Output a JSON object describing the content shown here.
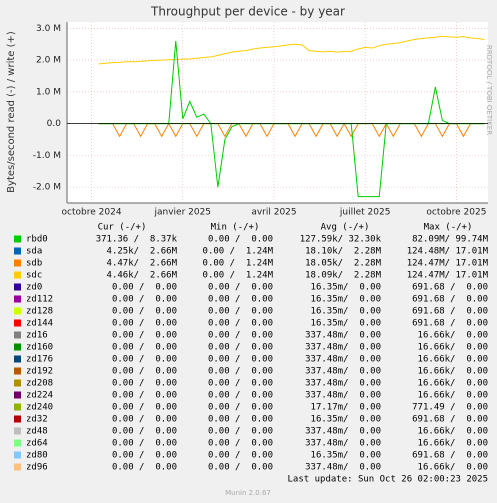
{
  "chart_data": {
    "type": "line",
    "title": "Throughput per device - by year",
    "y_label": "Bytes/second read (-) / write (+)",
    "side_text": "RRDTOOL / TOBI OETIKER",
    "categories": [
      null,
      null,
      null,
      "octobre 2024",
      null,
      null,
      null,
      null,
      null,
      null,
      null,
      null,
      null,
      null,
      null,
      null,
      "janvier 2025",
      null,
      null,
      null,
      null,
      null,
      null,
      null,
      null,
      null,
      null,
      null,
      null,
      "avril 2025",
      null,
      null,
      null,
      null,
      null,
      null,
      null,
      null,
      null,
      null,
      null,
      null,
      "juillet 2025",
      null,
      null,
      null,
      null,
      null,
      null,
      null,
      null,
      null,
      null,
      null,
      null,
      "octobre 2025",
      null,
      null,
      null,
      null
    ],
    "ylim": [
      -2500000,
      3200000
    ],
    "yticks": [
      {
        "value": 3000000,
        "label": "3.0 M"
      },
      {
        "value": 2000000,
        "label": "2.0 M"
      },
      {
        "value": 1000000,
        "label": "1.0 M"
      },
      {
        "value": 0,
        "label": "0.0"
      },
      {
        "value": -1000000,
        "label": "-1.0 M"
      },
      {
        "value": -2000000,
        "label": "-2.0 M"
      }
    ],
    "grid": true,
    "series": [
      {
        "name": "sdc",
        "color": "#ffcc00",
        "values": [
          null,
          null,
          null,
          null,
          1880000,
          1900000,
          1920000,
          1930000,
          1950000,
          1950000,
          1960000,
          1980000,
          1990000,
          2000000,
          2010000,
          2020000,
          2030000,
          2040000,
          2060000,
          2080000,
          2100000,
          2150000,
          2200000,
          2250000,
          2280000,
          2300000,
          2350000,
          2380000,
          2400000,
          2420000,
          2450000,
          2480000,
          2500000,
          2480000,
          2300000,
          2280000,
          2260000,
          2280000,
          2250000,
          2270000,
          2280000,
          2350000,
          2400000,
          2380000,
          2450000,
          2500000,
          2520000,
          2550000,
          2600000,
          2650000,
          2680000,
          2700000,
          2720000,
          2750000,
          2730000,
          2720000,
          2740000,
          2700000,
          2680000,
          2650000
        ]
      },
      {
        "name": "sdb",
        "color": "#ff8000",
        "values": [
          null,
          null,
          null,
          null,
          0,
          0,
          0,
          -400000,
          0,
          0,
          -400000,
          0,
          0,
          -400000,
          0,
          -400000,
          0,
          0,
          -400000,
          0,
          0,
          0,
          -400000,
          0,
          0,
          -400000,
          0,
          0,
          -400000,
          0,
          0,
          0,
          -400000,
          0,
          0,
          -400000,
          0,
          0,
          -400000,
          0,
          -400000,
          0,
          0,
          0,
          -400000,
          0,
          -400000,
          0,
          0,
          0,
          -400000,
          0,
          0,
          -400000,
          0,
          0,
          -400000,
          0,
          0,
          0
        ]
      },
      {
        "name": "rbd0",
        "color": "#00cc00",
        "values": [
          null,
          null,
          null,
          null,
          0,
          0,
          0,
          0,
          0,
          0,
          0,
          0,
          0,
          0,
          0,
          2600000,
          150000,
          700000,
          200000,
          300000,
          0,
          0,
          0,
          0,
          0,
          0,
          0,
          0,
          0,
          0,
          0,
          0,
          0,
          0,
          0,
          0,
          0,
          0,
          0,
          0,
          0,
          0,
          0,
          0,
          0,
          0,
          0,
          0,
          0,
          0,
          0,
          0,
          1150000,
          100000,
          0,
          0,
          0,
          0,
          0,
          0
        ]
      },
      {
        "name": "rbd0",
        "color": "#00cc00",
        "values": [
          null,
          null,
          null,
          null,
          0,
          0,
          0,
          0,
          0,
          0,
          0,
          0,
          0,
          0,
          0,
          0,
          0,
          0,
          0,
          0,
          0,
          -2000000,
          -500000,
          -100000,
          0,
          0,
          0,
          0,
          0,
          0,
          0,
          0,
          0,
          0,
          0,
          0,
          0,
          0,
          0,
          0,
          0,
          -2300000,
          -2300000,
          -2300000,
          -2300000,
          0,
          0,
          0,
          0,
          0,
          0,
          0,
          0,
          0,
          0,
          0,
          0,
          0,
          0,
          0
        ]
      }
    ]
  },
  "legend": {
    "headers": [
      "Cur (-/+)",
      "Min (-/+)",
      "Avg (-/+)",
      "Max (-/+)"
    ],
    "rows": [
      [
        "rbd0",
        "#00cc00",
        "371.36 /  8.37k",
        "0.00 /  0.00",
        "127.59k/ 32.30k",
        "82.09M/ 99.74M"
      ],
      [
        "sda",
        "#0066b3",
        "4.25k/  2.66M",
        "0.00 /  1.24M",
        "18.10k/  2.28M",
        "124.48M/ 17.01M"
      ],
      [
        "sdb",
        "#ff8000",
        "4.47k/  2.66M",
        "0.00 /  1.24M",
        "18.05k/  2.28M",
        "124.47M/ 17.01M"
      ],
      [
        "sdc",
        "#ffcc00",
        "4.46k/  2.66M",
        "0.00 /  1.24M",
        "18.09k/  2.28M",
        "124.47M/ 17.01M"
      ],
      [
        "zd0",
        "#330099",
        "0.00 /  0.00",
        "0.00 /  0.00",
        "16.35m/  0.00",
        "691.68 /  0.00"
      ],
      [
        "zd112",
        "#990099",
        "0.00 /  0.00",
        "0.00 /  0.00",
        "16.35m/  0.00",
        "691.68 /  0.00"
      ],
      [
        "zd128",
        "#ccff00",
        "0.00 /  0.00",
        "0.00 /  0.00",
        "16.35m/  0.00",
        "691.68 /  0.00"
      ],
      [
        "zd144",
        "#ff0000",
        "0.00 /  0.00",
        "0.00 /  0.00",
        "16.35m/  0.00",
        "691.68 /  0.00"
      ],
      [
        "zd16",
        "#808080",
        "0.00 /  0.00",
        "0.00 /  0.00",
        "337.48m/  0.00",
        "16.66k/  0.00"
      ],
      [
        "zd160",
        "#008f00",
        "0.00 /  0.00",
        "0.00 /  0.00",
        "337.48m/  0.00",
        "16.66k/  0.00"
      ],
      [
        "zd176",
        "#00487d",
        "0.00 /  0.00",
        "0.00 /  0.00",
        "337.48m/  0.00",
        "16.66k/  0.00"
      ],
      [
        "zd192",
        "#b35a00",
        "0.00 /  0.00",
        "0.00 /  0.00",
        "337.48m/  0.00",
        "16.66k/  0.00"
      ],
      [
        "zd208",
        "#b38f00",
        "0.00 /  0.00",
        "0.00 /  0.00",
        "337.48m/  0.00",
        "16.66k/  0.00"
      ],
      [
        "zd224",
        "#6b006b",
        "0.00 /  0.00",
        "0.00 /  0.00",
        "337.48m/  0.00",
        "16.66k/  0.00"
      ],
      [
        "zd240",
        "#8fb300",
        "0.00 /  0.00",
        "0.00 /  0.00",
        "17.17m/  0.00",
        "771.49 /  0.00"
      ],
      [
        "zd32",
        "#b30000",
        "0.00 /  0.00",
        "0.00 /  0.00",
        "16.35m/  0.00",
        "691.68 /  0.00"
      ],
      [
        "zd48",
        "#bebebe",
        "0.00 /  0.00",
        "0.00 /  0.00",
        "337.48m/  0.00",
        "16.66k/  0.00"
      ],
      [
        "zd64",
        "#80ff80",
        "0.00 /  0.00",
        "0.00 /  0.00",
        "337.48m/  0.00",
        "16.66k/  0.00"
      ],
      [
        "zd80",
        "#80c9ff",
        "0.00 /  0.00",
        "0.00 /  0.00",
        "16.35m/  0.00",
        "691.68 /  0.00"
      ],
      [
        "zd96",
        "#ffc080",
        "0.00 /  0.00",
        "0.00 /  0.00",
        "337.48m/  0.00",
        "16.66k/  0.00"
      ]
    ]
  },
  "footer": {
    "last_update": "Last update: Sun Oct 26 02:00:23 2025",
    "version": "Munin 2.0.67"
  }
}
